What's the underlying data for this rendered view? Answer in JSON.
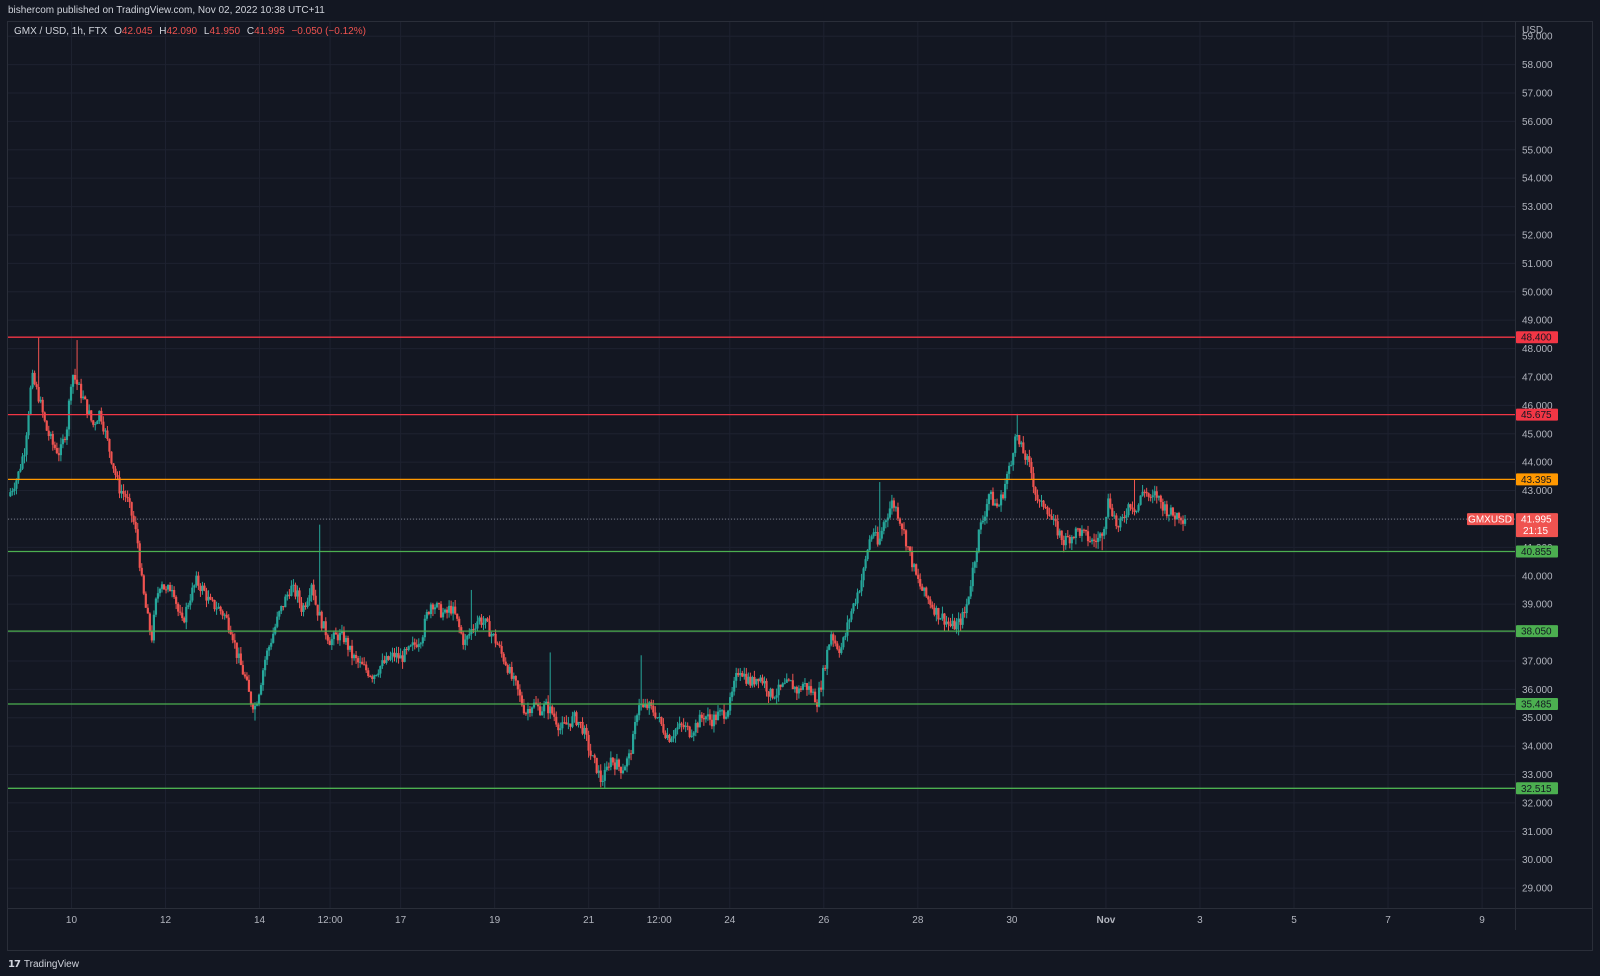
{
  "header": {
    "publisher_text": "bishercom published on TradingView.com, Nov 02, 2022 10:38 UTC+11"
  },
  "legend": {
    "symbol": "GMX / USD, 1h, FTX",
    "o_label": "O",
    "o_value": "42.045",
    "h_label": "H",
    "h_value": "42.090",
    "l_label": "L",
    "l_value": "41.950",
    "c_label": "C",
    "c_value": "41.995",
    "change": "−0.050 (−0.12%)"
  },
  "footer": {
    "brand": "TradingView",
    "logo_glyph": "17"
  },
  "colors": {
    "background": "#131722",
    "grid": "#1e2230",
    "up": "#26a69a",
    "down": "#ef5350",
    "resistance": "#f23645",
    "pivot": "#ff9800",
    "support": "#4caf50",
    "price_line": "#787b86"
  },
  "chart_data": {
    "type": "candlestick",
    "symbol": "GMX / USD",
    "interval": "1h",
    "exchange": "FTX",
    "currency_label": "USD",
    "ylim": [
      28.3,
      59.5
    ],
    "y_ticks": [
      "29.000",
      "30.000",
      "31.000",
      "32.000",
      "33.000",
      "34.000",
      "35.000",
      "36.000",
      "37.000",
      "38.000",
      "39.000",
      "40.000",
      "41.000",
      "42.000",
      "43.000",
      "44.000",
      "45.000",
      "46.000",
      "47.000",
      "48.000",
      "49.000",
      "50.000",
      "51.000",
      "52.000",
      "53.000",
      "54.000",
      "55.000",
      "56.000",
      "57.000",
      "58.000",
      "59.000"
    ],
    "x_ticks": [
      {
        "label": "10",
        "t": 1.0
      },
      {
        "label": "12",
        "t": 3.0
      },
      {
        "label": "14",
        "t": 5.0
      },
      {
        "label": "12:00",
        "t": 6.5
      },
      {
        "label": "17",
        "t": 8.0
      },
      {
        "label": "19",
        "t": 10.0
      },
      {
        "label": "21",
        "t": 12.0
      },
      {
        "label": "12:00",
        "t": 13.5
      },
      {
        "label": "24",
        "t": 15.0
      },
      {
        "label": "26",
        "t": 17.0
      },
      {
        "label": "28",
        "t": 19.0
      },
      {
        "label": "30",
        "t": 21.0
      },
      {
        "label": "Nov",
        "t": 23.0
      },
      {
        "label": "3",
        "t": 25.0
      },
      {
        "label": "5",
        "t": 27.0
      },
      {
        "label": "7",
        "t": 29.0
      },
      {
        "label": "9",
        "t": 31.0
      }
    ],
    "x_domain": [
      -0.35,
      31.7
    ],
    "path": [
      [
        -0.3,
        42.8
      ],
      [
        -0.1,
        43.5
      ],
      [
        0.05,
        44.5
      ],
      [
        0.2,
        47.0
      ],
      [
        0.35,
        46.3
      ],
      [
        0.5,
        45.2
      ],
      [
        0.65,
        44.6
      ],
      [
        0.8,
        44.3
      ],
      [
        0.95,
        45.3
      ],
      [
        1.05,
        47.2
      ],
      [
        1.2,
        46.6
      ],
      [
        1.35,
        46.0
      ],
      [
        1.5,
        45.3
      ],
      [
        1.65,
        45.8
      ],
      [
        1.75,
        45.1
      ],
      [
        1.9,
        44.1
      ],
      [
        2.05,
        43.1
      ],
      [
        2.2,
        42.8
      ],
      [
        2.35,
        42.0
      ],
      [
        2.45,
        41.2
      ],
      [
        2.55,
        39.6
      ],
      [
        2.65,
        38.6
      ],
      [
        2.75,
        37.8
      ],
      [
        2.85,
        39.2
      ],
      [
        2.95,
        39.9
      ],
      [
        3.05,
        39.4
      ],
      [
        3.2,
        39.7
      ],
      [
        3.3,
        38.8
      ],
      [
        3.4,
        38.3
      ],
      [
        3.55,
        39.2
      ],
      [
        3.7,
        39.8
      ],
      [
        3.85,
        39.5
      ],
      [
        4.0,
        39.0
      ],
      [
        4.15,
        38.9
      ],
      [
        4.3,
        38.6
      ],
      [
        4.45,
        38.1
      ],
      [
        4.55,
        37.3
      ],
      [
        4.65,
        36.8
      ],
      [
        4.75,
        36.3
      ],
      [
        4.85,
        35.6
      ],
      [
        4.95,
        35.4
      ],
      [
        5.05,
        36.1
      ],
      [
        5.15,
        37.0
      ],
      [
        5.3,
        37.8
      ],
      [
        5.45,
        38.6
      ],
      [
        5.55,
        39.0
      ],
      [
        5.7,
        39.6
      ],
      [
        5.85,
        39.3
      ],
      [
        5.95,
        38.8
      ],
      [
        6.05,
        39.2
      ],
      [
        6.15,
        39.8
      ],
      [
        6.25,
        38.9
      ],
      [
        6.4,
        38.2
      ],
      [
        6.55,
        37.7
      ],
      [
        6.7,
        37.9
      ],
      [
        6.85,
        37.8
      ],
      [
        7.0,
        37.2
      ],
      [
        7.15,
        36.9
      ],
      [
        7.3,
        36.7
      ],
      [
        7.45,
        36.5
      ],
      [
        7.6,
        36.8
      ],
      [
        7.75,
        37.0
      ],
      [
        7.9,
        37.2
      ],
      [
        8.05,
        37.1
      ],
      [
        8.2,
        37.3
      ],
      [
        8.35,
        37.6
      ],
      [
        8.5,
        37.9
      ],
      [
        8.6,
        38.6
      ],
      [
        8.7,
        39.1
      ],
      [
        8.85,
        38.8
      ],
      [
        9.0,
        38.6
      ],
      [
        9.1,
        38.9
      ],
      [
        9.2,
        38.6
      ],
      [
        9.3,
        38.1
      ],
      [
        9.4,
        37.6
      ],
      [
        9.55,
        38.1
      ],
      [
        9.7,
        38.5
      ],
      [
        9.85,
        38.3
      ],
      [
        10.0,
        37.9
      ],
      [
        10.1,
        37.6
      ],
      [
        10.2,
        37.2
      ],
      [
        10.3,
        36.9
      ],
      [
        10.4,
        36.4
      ],
      [
        10.5,
        36.1
      ],
      [
        10.6,
        35.6
      ],
      [
        10.7,
        35.2
      ],
      [
        10.85,
        35.5
      ],
      [
        11.0,
        35.3
      ],
      [
        11.15,
        35.4
      ],
      [
        11.3,
        35.1
      ],
      [
        11.45,
        34.6
      ],
      [
        11.6,
        34.8
      ],
      [
        11.75,
        35.0
      ],
      [
        11.9,
        34.7
      ],
      [
        12.0,
        34.2
      ],
      [
        12.1,
        33.6
      ],
      [
        12.2,
        33.3
      ],
      [
        12.3,
        32.8
      ],
      [
        12.4,
        33.0
      ],
      [
        12.5,
        33.6
      ],
      [
        12.6,
        33.4
      ],
      [
        12.75,
        33.2
      ],
      [
        12.9,
        33.6
      ],
      [
        13.0,
        34.3
      ],
      [
        13.1,
        35.6
      ],
      [
        13.2,
        35.3
      ],
      [
        13.3,
        35.4
      ],
      [
        13.45,
        35.2
      ],
      [
        13.6,
        34.7
      ],
      [
        13.75,
        34.3
      ],
      [
        13.9,
        34.6
      ],
      [
        14.05,
        34.7
      ],
      [
        14.2,
        34.5
      ],
      [
        14.35,
        34.8
      ],
      [
        14.5,
        35.1
      ],
      [
        14.65,
        34.9
      ],
      [
        14.8,
        35.1
      ],
      [
        14.95,
        35.2
      ],
      [
        15.05,
        35.5
      ],
      [
        15.15,
        36.2
      ],
      [
        15.25,
        36.8
      ],
      [
        15.35,
        36.5
      ],
      [
        15.5,
        36.2
      ],
      [
        15.65,
        36.5
      ],
      [
        15.8,
        36.2
      ],
      [
        15.9,
        35.8
      ],
      [
        16.05,
        35.9
      ],
      [
        16.2,
        36.1
      ],
      [
        16.35,
        36.2
      ],
      [
        16.5,
        35.9
      ],
      [
        16.6,
        36.2
      ],
      [
        16.75,
        36.0
      ],
      [
        16.9,
        35.6
      ],
      [
        17.0,
        36.3
      ],
      [
        17.1,
        37.2
      ],
      [
        17.2,
        38.0
      ],
      [
        17.3,
        37.6
      ],
      [
        17.4,
        37.4
      ],
      [
        17.5,
        37.9
      ],
      [
        17.6,
        38.6
      ],
      [
        17.7,
        39.1
      ],
      [
        17.8,
        39.6
      ],
      [
        17.9,
        40.2
      ],
      [
        18.0,
        41.2
      ],
      [
        18.1,
        41.6
      ],
      [
        18.2,
        41.0
      ],
      [
        18.3,
        41.8
      ],
      [
        18.4,
        42.2
      ],
      [
        18.5,
        42.6
      ],
      [
        18.6,
        42.3
      ],
      [
        18.7,
        41.8
      ],
      [
        18.8,
        41.2
      ],
      [
        18.9,
        40.6
      ],
      [
        19.0,
        40.0
      ],
      [
        19.1,
        39.6
      ],
      [
        19.2,
        39.3
      ],
      [
        19.3,
        39.1
      ],
      [
        19.45,
        38.7
      ],
      [
        19.6,
        38.5
      ],
      [
        19.75,
        38.2
      ],
      [
        19.9,
        38.3
      ],
      [
        20.05,
        38.7
      ],
      [
        20.15,
        39.6
      ],
      [
        20.25,
        40.6
      ],
      [
        20.35,
        41.6
      ],
      [
        20.45,
        42.1
      ],
      [
        20.55,
        42.9
      ],
      [
        20.65,
        42.6
      ],
      [
        20.75,
        42.4
      ],
      [
        20.85,
        42.9
      ],
      [
        20.95,
        43.6
      ],
      [
        21.05,
        44.0
      ],
      [
        21.1,
        45.2
      ],
      [
        21.2,
        44.6
      ],
      [
        21.3,
        44.3
      ],
      [
        21.45,
        43.7
      ],
      [
        21.55,
        42.9
      ],
      [
        21.65,
        42.4
      ],
      [
        21.75,
        42.6
      ],
      [
        21.9,
        41.9
      ],
      [
        22.05,
        41.5
      ],
      [
        22.15,
        41.2
      ],
      [
        22.3,
        41.4
      ],
      [
        22.45,
        41.6
      ],
      [
        22.6,
        41.4
      ],
      [
        22.75,
        41.2
      ],
      [
        22.9,
        41.3
      ],
      [
        23.0,
        41.8
      ],
      [
        23.1,
        42.7
      ],
      [
        23.2,
        42.2
      ],
      [
        23.3,
        41.6
      ],
      [
        23.4,
        42.0
      ],
      [
        23.55,
        42.6
      ],
      [
        23.7,
        42.3
      ],
      [
        23.85,
        43.1
      ],
      [
        24.0,
        42.6
      ],
      [
        24.1,
        42.9
      ],
      [
        24.2,
        42.6
      ],
      [
        24.35,
        42.3
      ],
      [
        24.5,
        42.1
      ],
      [
        24.6,
        42.2
      ],
      [
        24.7,
        42.0
      ]
    ],
    "wicks": [
      {
        "t": 0.3,
        "high": 48.4
      },
      {
        "t": 1.1,
        "high": 48.3
      },
      {
        "t": 6.3,
        "high": 41.8
      },
      {
        "t": 9.5,
        "high": 39.5
      },
      {
        "t": 11.2,
        "high": 37.3
      },
      {
        "t": 13.1,
        "high": 37.2
      },
      {
        "t": 4.9,
        "low": 34.9
      },
      {
        "t": 12.35,
        "low": 32.5
      },
      {
        "t": 12.3,
        "low": 32.6
      },
      {
        "t": 18.2,
        "high": 43.3
      },
      {
        "t": 19.85,
        "low": 37.9
      },
      {
        "t": 21.1,
        "high": 45.7
      },
      {
        "t": 22.9,
        "low": 40.9
      },
      {
        "t": 23.6,
        "high": 43.4
      }
    ],
    "levels": [
      {
        "value": 48.4,
        "label": "48.400",
        "kind": "resistance"
      },
      {
        "value": 45.675,
        "label": "45.675",
        "kind": "resistance"
      },
      {
        "value": 43.395,
        "label": "43.395",
        "kind": "pivot"
      },
      {
        "value": 40.855,
        "label": "40.855",
        "kind": "support"
      },
      {
        "value": 38.05,
        "label": "38.050",
        "kind": "support"
      },
      {
        "value": 35.485,
        "label": "35.485",
        "kind": "support"
      },
      {
        "value": 32.515,
        "label": "32.515",
        "kind": "support"
      }
    ],
    "current_price": {
      "value": 41.995,
      "label": "41.995",
      "countdown": "21:15",
      "symbol_tag": "GMXUSD"
    }
  }
}
